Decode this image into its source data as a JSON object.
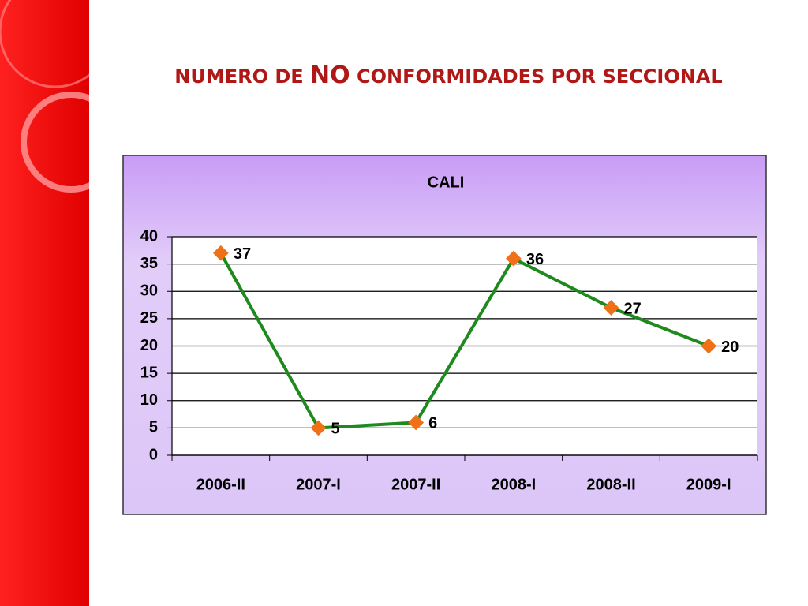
{
  "slide_title": [
    "NUMERO DE",
    "NO",
    "CONFORMIDADES POR SECCIONAL"
  ],
  "chart_data": {
    "type": "line",
    "title": "CALI",
    "categories": [
      "2006-II",
      "2007-I",
      "2007-II",
      "2008-I",
      "2008-II",
      "2009-I"
    ],
    "values": [
      37,
      5,
      6,
      36,
      27,
      20
    ],
    "color": "#1e8a1e",
    "marker_color": "#f07018",
    "ylim": [
      0,
      40
    ],
    "yticks": [
      0,
      5,
      10,
      15,
      20,
      25,
      30,
      35,
      40
    ],
    "grid": true
  }
}
